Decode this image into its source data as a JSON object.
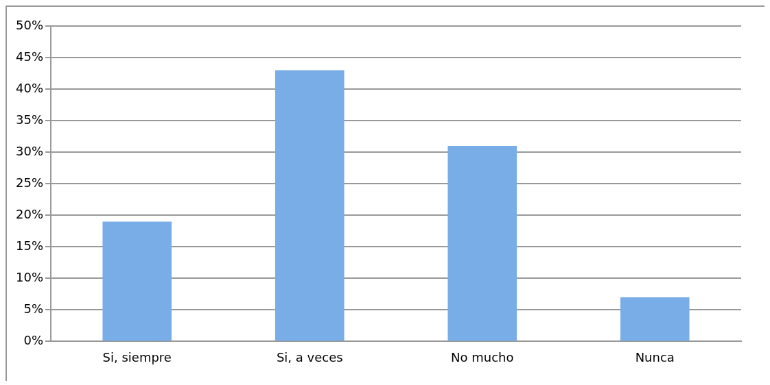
{
  "chart_data": {
    "type": "bar",
    "categories": [
      "Si, siempre",
      "Si, a veces",
      "No mucho",
      "Nunca"
    ],
    "values": [
      19,
      43,
      31,
      7
    ],
    "color": "#78ade8",
    "ylim": [
      0,
      50
    ],
    "yticks": [
      {
        "value": 0,
        "label": "0%"
      },
      {
        "value": 5,
        "label": "5%"
      },
      {
        "value": 10,
        "label": "10%"
      },
      {
        "value": 15,
        "label": "15%"
      },
      {
        "value": 20,
        "label": "20%"
      },
      {
        "value": 25,
        "label": "25%"
      },
      {
        "value": 30,
        "label": "30%"
      },
      {
        "value": 35,
        "label": "35%"
      },
      {
        "value": 40,
        "label": "40%"
      },
      {
        "value": 45,
        "label": "45%"
      },
      {
        "value": 50,
        "label": "50%"
      }
    ],
    "grid": "y"
  }
}
